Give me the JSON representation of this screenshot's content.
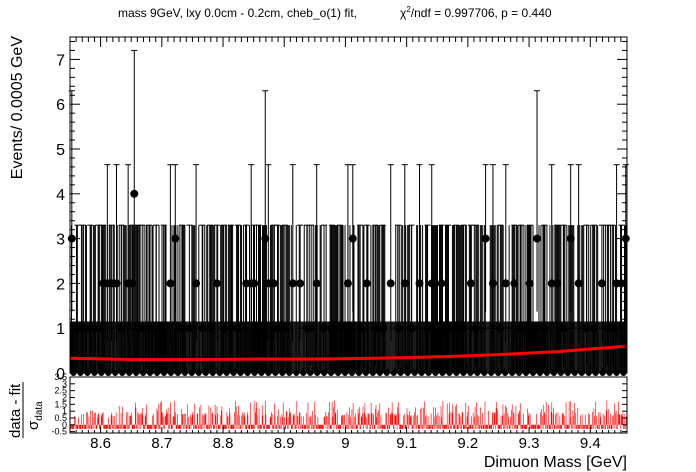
{
  "header": {
    "title": "mass 9GeV, lxy 0.0cm - 0.2cm, cheb_o(1) fit,",
    "chi2_symbol": "χ",
    "chi2_sup": "2",
    "chi2_text": "/ndf = 0.997706, p = 0.440"
  },
  "colors": {
    "data": "#000000",
    "fit": "#ff0000",
    "residual": "#ff0000",
    "frame": "#000000"
  },
  "chart_data": [
    {
      "name": "main-panel",
      "type": "scatter",
      "xlabel": "Dimuon Mass [GeV]",
      "ylabel": "Events/ 0.0005 GeV",
      "xlim": [
        8.55,
        9.46
      ],
      "ylim": [
        0,
        7.5
      ],
      "xticks": [
        "8.6",
        "8.7",
        "8.8",
        "8.9",
        "9",
        "9.1",
        "9.2",
        "9.3",
        "9.4"
      ],
      "yticks": [
        "0",
        "1",
        "2",
        "3",
        "4",
        "5",
        "6",
        "7"
      ],
      "bin_width": 0.0005,
      "series": [
        {
          "role": "data-points-nonzero",
          "x": [
            8.553,
            8.562,
            8.571,
            8.583,
            8.596,
            8.604,
            8.611,
            8.618,
            8.626,
            8.634,
            8.645,
            8.652,
            8.655,
            8.661,
            8.668,
            8.679,
            8.691,
            8.703,
            8.714,
            8.722,
            8.733,
            8.745,
            8.756,
            8.766,
            8.779,
            8.79,
            8.801,
            8.813,
            8.824,
            8.838,
            8.846,
            8.851,
            8.858,
            8.869,
            8.874,
            8.883,
            8.889,
            8.901,
            8.914,
            8.926,
            8.937,
            8.944,
            8.953,
            8.965,
            8.978,
            8.991,
            9.004,
            9.012,
            9.024,
            9.035,
            9.049,
            9.061,
            9.074,
            9.086,
            9.097,
            9.108,
            9.121,
            9.134,
            9.141,
            9.157,
            9.168,
            9.181,
            9.193,
            9.205,
            9.213,
            9.229,
            9.241,
            9.253,
            9.262,
            9.276,
            9.287,
            9.301,
            9.313,
            9.325,
            9.337,
            9.346,
            9.356,
            9.368,
            9.381,
            9.394,
            9.406,
            9.419,
            9.428,
            9.436,
            9.443,
            9.451,
            9.458
          ],
          "y": [
            3,
            1,
            1,
            1,
            1,
            2,
            2,
            2,
            2,
            1,
            2,
            2,
            4,
            1,
            1,
            1,
            1,
            1,
            2,
            3,
            1,
            1,
            2,
            1,
            1,
            2,
            1,
            1,
            1,
            2,
            2,
            2,
            1,
            3,
            2,
            2,
            1,
            1,
            2,
            2,
            1,
            1,
            2,
            1,
            1,
            1,
            2,
            3,
            1,
            2,
            1,
            1,
            2,
            1,
            2,
            1,
            2,
            1,
            2,
            2,
            1,
            1,
            1,
            2,
            1,
            3,
            2,
            1,
            2,
            2,
            1,
            2,
            3,
            1,
            2,
            2,
            1,
            3,
            2,
            1,
            1,
            2,
            1,
            1,
            2,
            2,
            3
          ]
        },
        {
          "role": "fit",
          "x": [
            8.55,
            8.65,
            8.75,
            8.85,
            8.95,
            9.05,
            9.15,
            9.25,
            9.35,
            9.46
          ],
          "y": [
            0.33,
            0.3,
            0.3,
            0.31,
            0.31,
            0.33,
            0.36,
            0.41,
            0.48,
            0.6
          ]
        }
      ]
    },
    {
      "name": "pull-panel",
      "type": "bar",
      "ylabel_numerator": "data - fit",
      "ylabel_denominator_symbol": "σ",
      "ylabel_denominator_sub": "data",
      "xlim": [
        8.55,
        9.46
      ],
      "ylim": [
        -0.6,
        3.5
      ],
      "yticks": [
        "-0.5",
        "0",
        "0.5",
        "1",
        "1.5",
        "2",
        "2.5",
        "3",
        "3.5"
      ],
      "note": ""
    }
  ]
}
